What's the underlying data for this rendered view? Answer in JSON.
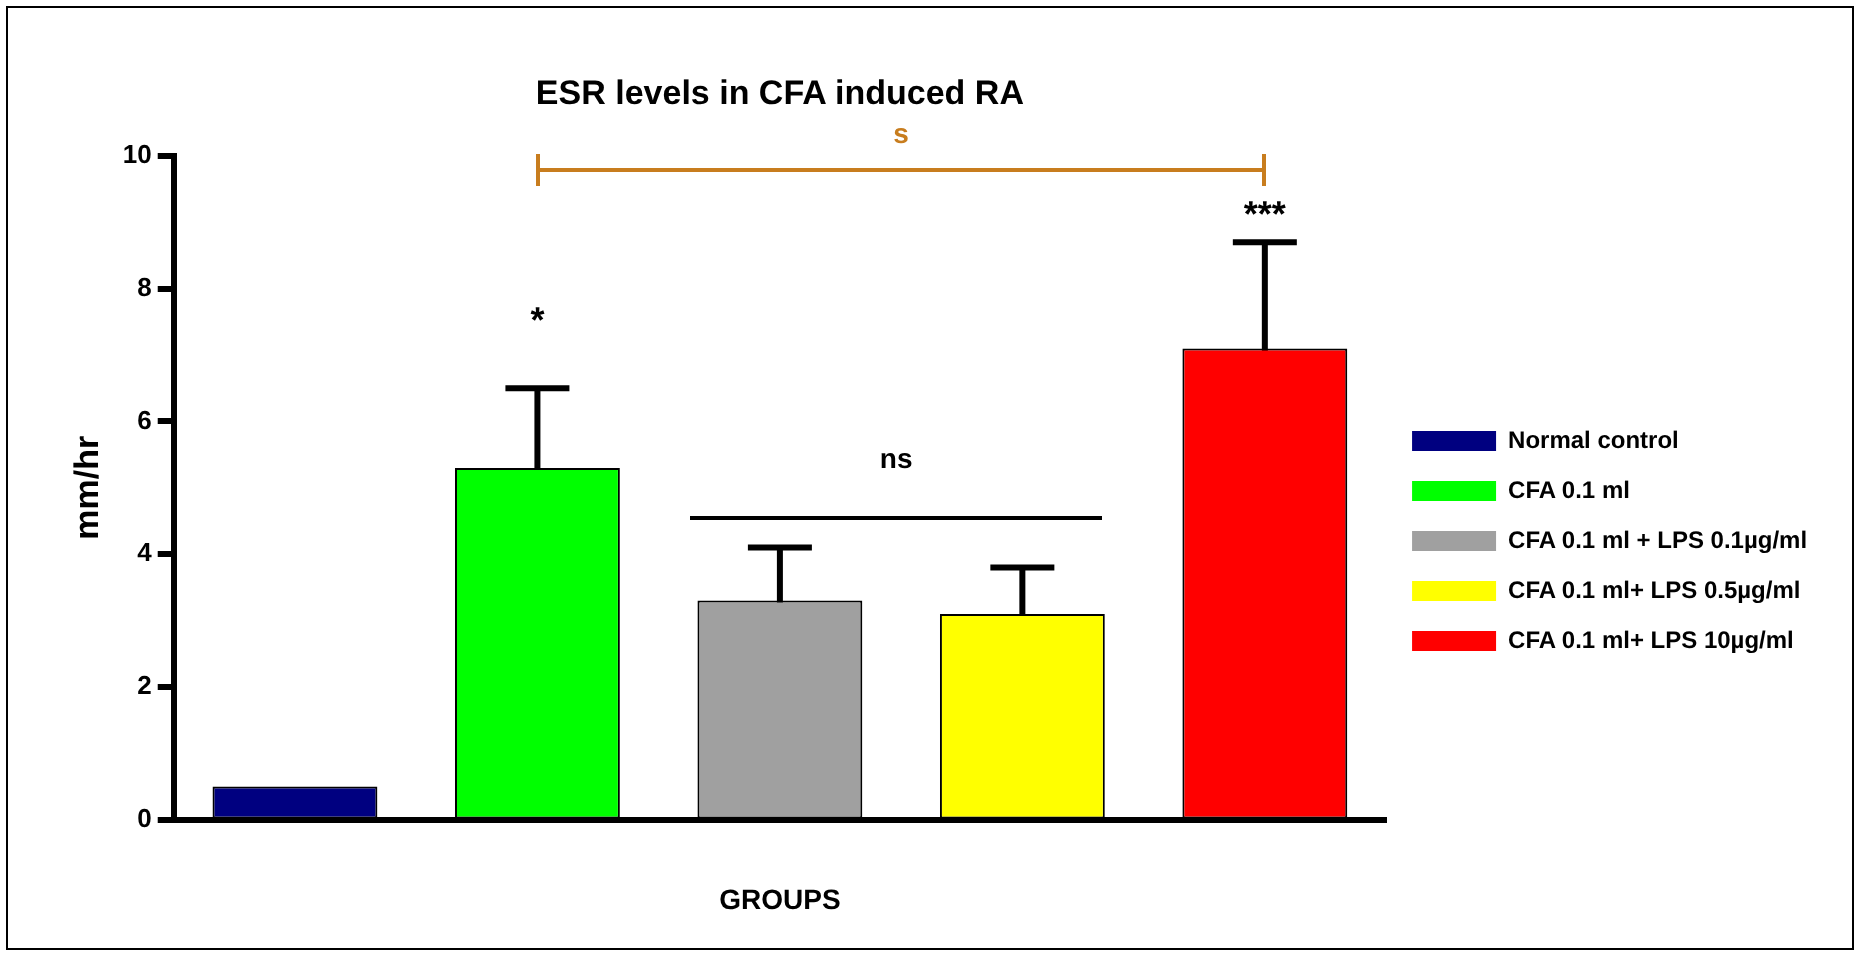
{
  "chart_data": {
    "type": "bar",
    "title": "ESR levels in CFA induced RA",
    "xlabel": "GROUPS",
    "ylabel": "mm/hr",
    "categories": [
      null,
      null,
      null,
      null,
      null
    ],
    "series": [
      {
        "name": "Normal control",
        "color": "#000080",
        "values": [
          0.5,
          null,
          null,
          null,
          null
        ],
        "errors": [
          null,
          null,
          null,
          null,
          null
        ]
      },
      {
        "name": "CFA 0.1 ml",
        "color": "#00ff00",
        "values": [
          null,
          5.3,
          null,
          null,
          null
        ],
        "errors": [
          null,
          1.2,
          null,
          null,
          null
        ]
      },
      {
        "name": "CFA 0.1 ml + LPS 0.1µg/ml",
        "color": "#a0a0a0",
        "values": [
          null,
          null,
          3.3,
          null,
          null
        ],
        "errors": [
          null,
          null,
          0.8,
          null,
          null
        ]
      },
      {
        "name": "CFA 0.1 ml+ LPS 0.5µg/ml",
        "color": "#ffff00",
        "values": [
          null,
          null,
          null,
          3.1,
          null
        ],
        "errors": [
          null,
          null,
          null,
          0.7,
          null
        ]
      },
      {
        "name": "CFA 0.1 ml+ LPS 10µg/ml",
        "color": "#ff0000",
        "values": [
          null,
          null,
          null,
          null,
          7.1
        ],
        "errors": [
          null,
          null,
          null,
          null,
          1.6
        ]
      }
    ],
    "ylim": [
      0,
      10
    ],
    "yticks": [
      0,
      2,
      4,
      6,
      8,
      10
    ],
    "grid": false,
    "legend": "right",
    "annotations": [
      "*",
      "***",
      "ns",
      "s"
    ]
  }
}
